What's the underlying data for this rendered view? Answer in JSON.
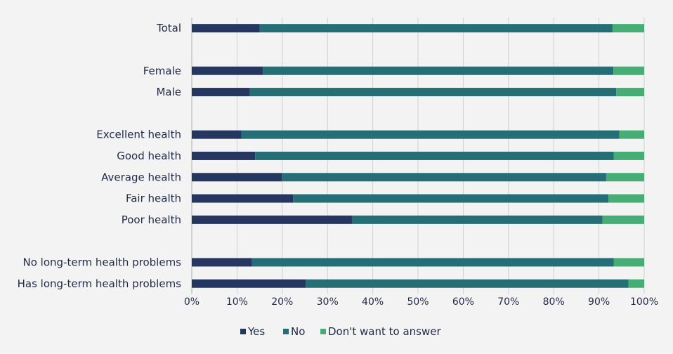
{
  "chart_data": {
    "type": "bar",
    "orientation": "horizontal",
    "stacked": true,
    "percent": true,
    "categories": [
      "Total",
      "",
      "Female",
      "Male",
      "",
      "Excellent health",
      "Good health",
      "Average health",
      "Fair health",
      "Poor health",
      "",
      "No long-term health problems",
      "Has long-term health problems"
    ],
    "series": [
      {
        "name": "Yes",
        "color": "#253660",
        "values": [
          15,
          null,
          15.7,
          12.8,
          null,
          11,
          14,
          19.9,
          22.4,
          35.4,
          null,
          13.3,
          25.2
        ]
      },
      {
        "name": "No",
        "color": "#256e76",
        "values": [
          78,
          null,
          77.5,
          81,
          null,
          83.5,
          79.3,
          71.7,
          69.7,
          55.4,
          null,
          80,
          71.3
        ]
      },
      {
        "name": "Don't want to answer",
        "color": "#46ad75",
        "values": [
          7,
          null,
          6.8,
          6.2,
          null,
          5.5,
          6.7,
          8.4,
          7.9,
          9.2,
          null,
          6.7,
          3.5
        ]
      }
    ],
    "xlim": [
      0,
      100
    ],
    "xticks": [
      "0%",
      "10%",
      "20%",
      "30%",
      "40%",
      "50%",
      "60%",
      "70%",
      "80%",
      "90%",
      "100%"
    ],
    "grid": "vertical",
    "legend": "bottom"
  }
}
